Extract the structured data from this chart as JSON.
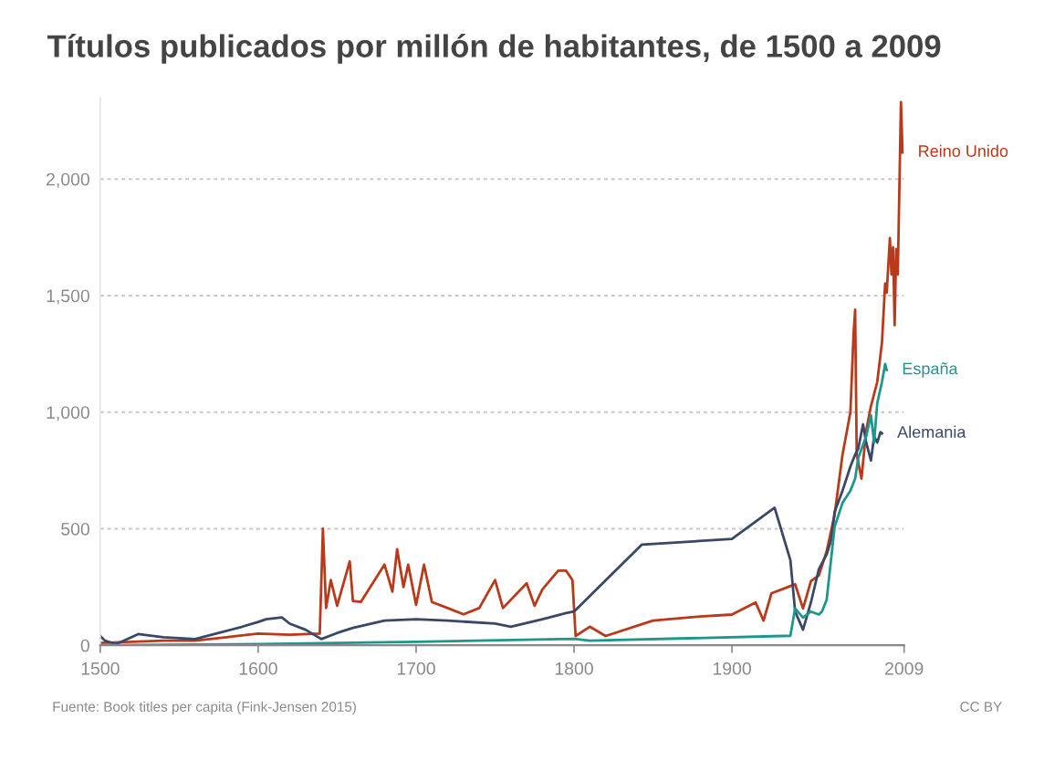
{
  "chart_data": {
    "type": "line",
    "title": "Títulos publicados por millón de habitantes, de 1500 a 2009",
    "xlim": [
      1500,
      2009
    ],
    "xticks": [
      1500,
      1600,
      1700,
      1800,
      1900,
      2009
    ],
    "ylim": [
      0,
      2350
    ],
    "yticks": [
      0,
      {
        "value": 500,
        "label": "500"
      },
      {
        "value": 1000,
        "label": "1,000"
      },
      {
        "value": 1500,
        "label": "1,500"
      },
      {
        "value": 2000,
        "label": "2,000"
      }
    ],
    "grid": "y",
    "legend": false,
    "series": [
      {
        "name": "Reino Unido",
        "color": "#b83a1b",
        "x": [
          1500,
          1520,
          1540,
          1560,
          1580,
          1600,
          1620,
          1639,
          1641,
          1643,
          1646,
          1650,
          1658,
          1660,
          1665,
          1680,
          1685,
          1688,
          1692,
          1695,
          1700,
          1705,
          1710,
          1720,
          1730,
          1740,
          1750,
          1755,
          1770,
          1775,
          1780,
          1790,
          1795,
          1799,
          1801,
          1810,
          1820,
          1850,
          1880,
          1900,
          1915,
          1920,
          1925,
          1935,
          1940,
          1945,
          1950,
          1955,
          1960,
          1965,
          1970,
          1975,
          1977,
          1978,
          1979,
          1982,
          1985,
          1988,
          1992,
          1995,
          1997,
          1998,
          2000,
          2001,
          2002,
          2003,
          2004,
          2005,
          2007,
          2008
        ],
        "values": [
          10,
          15,
          20,
          20,
          35,
          50,
          45,
          50,
          500,
          160,
          280,
          170,
          360,
          190,
          186,
          346,
          230,
          412,
          250,
          346,
          173,
          346,
          186,
          160,
          133,
          160,
          280,
          160,
          266,
          170,
          240,
          320,
          320,
          280,
          40,
          80,
          40,
          106,
          124,
          132,
          184,
          106,
          223,
          249,
          262,
          158,
          275,
          300,
          404,
          560,
          818,
          1000,
          1337,
          1440,
          818,
          715,
          922,
          1026,
          1130,
          1300,
          1552,
          1513,
          1747,
          1591,
          1708,
          1373,
          1700,
          1591,
          2330,
          2114
        ]
      },
      {
        "name": "Alemania",
        "color": "#3a4766",
        "x": [
          1500,
          1503,
          1510,
          1524,
          1540,
          1560,
          1575,
          1590,
          1600,
          1605,
          1615,
          1620,
          1630,
          1640,
          1650,
          1660,
          1680,
          1700,
          1720,
          1750,
          1760,
          1780,
          1795,
          1800,
          1843,
          1900,
          1927,
          1937,
          1940,
          1945,
          1950,
          1955,
          1960,
          1963,
          1965,
          1970,
          1975,
          1978,
          1980,
          1983,
          1985,
          1988,
          1990,
          1992,
          1994,
          1995
        ],
        "values": [
          40,
          20,
          5,
          48,
          35,
          27,
          53,
          80,
          100,
          112,
          120,
          93,
          67,
          27,
          53,
          75,
          106,
          112,
          106,
          93,
          80,
          112,
          138,
          145,
          432,
          456,
          590,
          365,
          145,
          67,
          184,
          326,
          391,
          456,
          572,
          663,
          767,
          818,
          844,
          948,
          870,
          793,
          896,
          870,
          914,
          909
        ]
      },
      {
        "name": "España",
        "color": "#1f968a",
        "x": [
          1500,
          1560,
          1600,
          1700,
          1800,
          1810,
          1937,
          1940,
          1945,
          1950,
          1955,
          1957,
          1960,
          1965,
          1970,
          1975,
          1978,
          1980,
          1985,
          1988,
          1990,
          1992,
          1995,
          1997,
          1998
        ],
        "values": [
          0,
          3,
          5,
          15,
          28,
          20,
          41,
          158,
          119,
          145,
          132,
          145,
          197,
          508,
          611,
          663,
          715,
          805,
          896,
          987,
          870,
          1039,
          1130,
          1207,
          1181
        ]
      }
    ],
    "annotations": [
      "Fuente: Book titles per capita (Fink-Jensen 2015)",
      "CC BY"
    ]
  }
}
